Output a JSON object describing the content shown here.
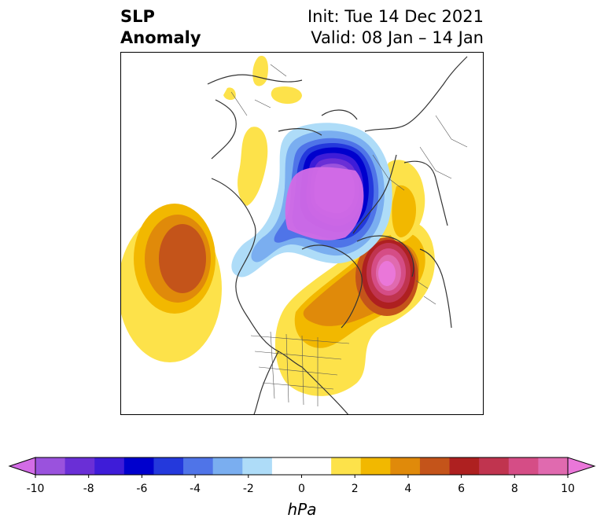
{
  "title": {
    "left_line1": "SLP",
    "left_line2": "Anomaly",
    "right_line1": "Init: Tue 14 Dec 2021",
    "right_line2": "Valid: 08 Jan – 14 Jan"
  },
  "colorbar": {
    "units": "hPa",
    "ticks": [
      "-10",
      "-8",
      "-6",
      "-4",
      "-2",
      "0",
      "2",
      "4",
      "6",
      "8",
      "10"
    ],
    "colors": [
      "#d36ce6",
      "#9a52dd",
      "#6a2fd6",
      "#3e1cd8",
      "#0000cd",
      "#2439dc",
      "#4f74e8",
      "#7aaef0",
      "#aedcf8",
      "#ffffff",
      "#ffffff",
      "#fde24a",
      "#f2b800",
      "#e08a0a",
      "#c4541a",
      "#ae2020",
      "#c0344f",
      "#d54d86",
      "#e06aaf",
      "#ea77d9"
    ],
    "range": [
      -10,
      10
    ],
    "extend": "both"
  },
  "map": {
    "projection": "north-polar stereographic",
    "features": [
      {
        "name": "negative anomaly over Arctic / northern Siberia",
        "min": -10,
        "color": "#d36ce6"
      },
      {
        "name": "positive anomaly over North Atlantic",
        "max": 10,
        "color": "#ea77d9"
      },
      {
        "name": "positive anomaly over North Pacific",
        "max": 5,
        "color": "#c4541a"
      },
      {
        "name": "positive anomaly over eastern North America",
        "max": 4,
        "color": "#e08a0a"
      }
    ]
  }
}
